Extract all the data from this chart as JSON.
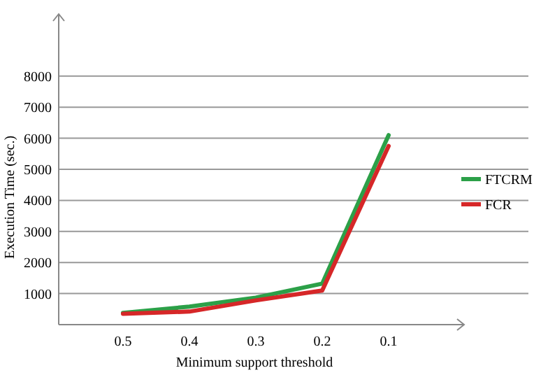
{
  "chart_data": {
    "type": "line",
    "xlabel": "Minimum support threshold",
    "ylabel": "Execution Time (sec.)",
    "categories": [
      "0.5",
      "0.4",
      "0.3",
      "0.2",
      "0.1"
    ],
    "series": [
      {
        "name": "FTCRM",
        "color": "#2ca048",
        "values": [
          380,
          580,
          870,
          1320,
          6100
        ]
      },
      {
        "name": "FCR",
        "color": "#d62728",
        "values": [
          350,
          420,
          780,
          1100,
          5750
        ]
      }
    ],
    "ylim": [
      0,
      10000
    ],
    "yticks": [
      1000,
      2000,
      3000,
      4000,
      5000,
      6000,
      7000,
      8000
    ],
    "grid": "y",
    "legend": "right"
  }
}
